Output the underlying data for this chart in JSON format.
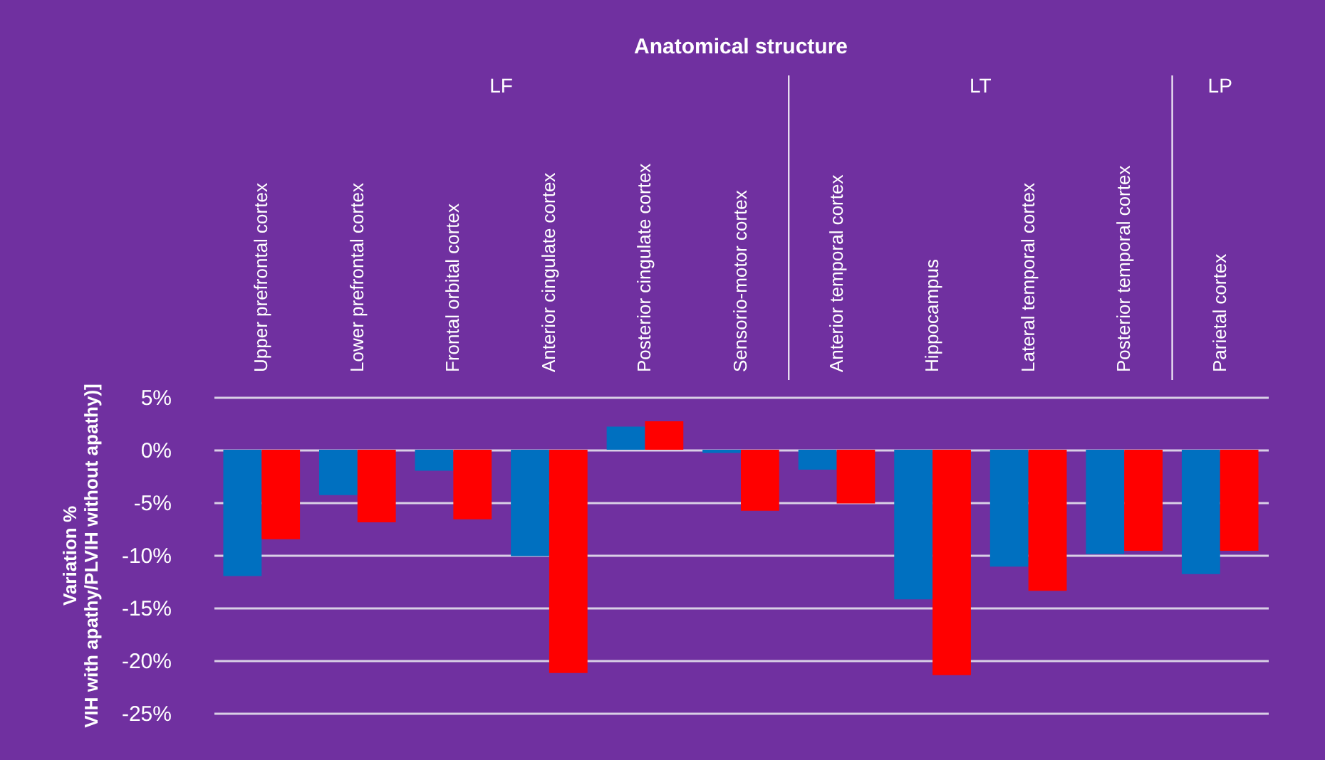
{
  "chart_data": {
    "type": "bar",
    "title": "Anatomical structure",
    "ylabel": "Variation %\nVIH with apathy/PLVIH without apathy)]",
    "categories": [
      "Upper prefrontal cortex",
      "Lower prefrontal cortex",
      "Frontal orbital cortex",
      "Anterior cingulate cortex",
      "Posterior cingulate cortex",
      "Sensorio-motor cortex",
      "Anterior temporal cortex",
      "Hippocampus",
      "Lateral temporal cortex",
      "Posterior temporal cortex",
      "Parietal cortex"
    ],
    "series": [
      {
        "color": "#0070c0",
        "values": [
          -12.0,
          -4.3,
          -2.0,
          -10.1,
          2.2,
          -0.3,
          -1.9,
          -14.2,
          -11.1,
          -9.9,
          -11.8
        ]
      },
      {
        "color": "#ff0000",
        "values": [
          -8.5,
          -6.9,
          -6.6,
          -21.2,
          2.7,
          -5.8,
          -5.1,
          -21.4,
          -13.4,
          -9.6,
          -9.6
        ]
      }
    ],
    "annotations": [
      "LF",
      "LT",
      "LP"
    ],
    "ylim": [
      -25,
      5
    ],
    "yticks": [
      {
        "value": 5,
        "label": "5%"
      },
      {
        "value": 0,
        "label": "0%"
      },
      {
        "value": -5,
        "label": "-5%"
      },
      {
        "value": -10,
        "label": "-10%"
      },
      {
        "value": -15,
        "label": "-15%"
      },
      {
        "value": -20,
        "label": "-20%"
      },
      {
        "value": -25,
        "label": "-25%"
      }
    ],
    "grid": "y",
    "legend": false
  }
}
